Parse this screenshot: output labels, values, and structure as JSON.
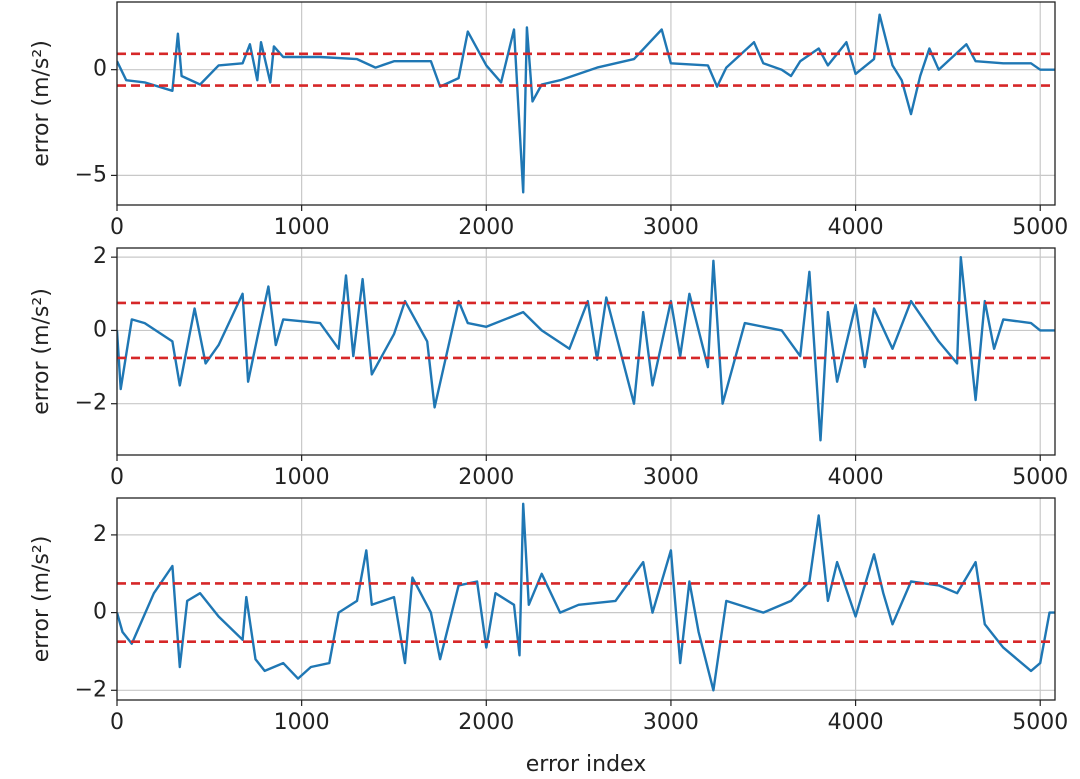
{
  "chart_data": [
    {
      "type": "line",
      "ylabel": "error (m/s²)",
      "grid": true,
      "xlim": [
        0,
        5080
      ],
      "ylim": [
        -6.4,
        3.2
      ],
      "xticks": [
        0,
        1000,
        2000,
        3000,
        4000,
        5000
      ],
      "yticks": [
        {
          "value": -5,
          "label": "−5"
        },
        0
      ],
      "hlines": [
        0.75,
        -0.75
      ],
      "hline_color": "#d62728",
      "x": [
        0,
        50,
        150,
        300,
        330,
        350,
        450,
        550,
        680,
        720,
        760,
        780,
        830,
        850,
        900,
        1100,
        1300,
        1400,
        1500,
        1700,
        1750,
        1850,
        1900,
        2000,
        2080,
        2150,
        2200,
        2220,
        2250,
        2300,
        2400,
        2600,
        2800,
        2950,
        3000,
        3200,
        3250,
        3300,
        3450,
        3500,
        3600,
        3650,
        3700,
        3800,
        3850,
        3950,
        4000,
        4100,
        4130,
        4200,
        4250,
        4300,
        4350,
        4400,
        4450,
        4550,
        4600,
        4650,
        4800,
        4950,
        5000,
        5080
      ],
      "series": [
        {
          "color": "#1f77b4",
          "values": [
            0.4,
            -0.5,
            -0.6,
            -1.0,
            1.7,
            -0.3,
            -0.7,
            0.2,
            0.3,
            1.2,
            -0.5,
            1.3,
            -0.6,
            1.1,
            0.6,
            0.6,
            0.5,
            0.1,
            0.4,
            0.4,
            -0.8,
            -0.4,
            1.8,
            0.2,
            -0.6,
            1.9,
            -5.8,
            2.0,
            -1.5,
            -0.7,
            -0.5,
            0.1,
            0.5,
            1.9,
            0.3,
            0.2,
            -0.8,
            0.1,
            1.3,
            0.3,
            0.0,
            -0.3,
            0.4,
            1.0,
            0.2,
            1.3,
            -0.2,
            0.5,
            2.6,
            0.2,
            -0.5,
            -2.1,
            -0.3,
            1.0,
            0.0,
            0.8,
            1.2,
            0.4,
            0.3,
            0.3,
            0.0,
            0.0
          ]
        }
      ]
    },
    {
      "type": "line",
      "ylabel": "error (m/s²)",
      "grid": true,
      "xlim": [
        0,
        5080
      ],
      "ylim": [
        -3.4,
        2.25
      ],
      "xticks": [
        0,
        1000,
        2000,
        3000,
        4000,
        5000
      ],
      "yticks": [
        {
          "value": -2,
          "label": "−2"
        },
        0,
        2
      ],
      "hlines": [
        0.75,
        -0.75
      ],
      "hline_color": "#d62728",
      "x": [
        0,
        20,
        80,
        150,
        300,
        340,
        420,
        480,
        550,
        680,
        710,
        760,
        820,
        860,
        900,
        1100,
        1200,
        1240,
        1280,
        1330,
        1380,
        1500,
        1560,
        1680,
        1720,
        1850,
        1900,
        2000,
        2200,
        2300,
        2450,
        2550,
        2600,
        2650,
        2800,
        2850,
        2900,
        3000,
        3050,
        3100,
        3200,
        3230,
        3280,
        3400,
        3600,
        3700,
        3750,
        3810,
        3850,
        3900,
        4000,
        4050,
        4100,
        4200,
        4300,
        4450,
        4550,
        4570,
        4650,
        4700,
        4750,
        4800,
        4950,
        5000,
        5080
      ],
      "series": [
        {
          "color": "#1f77b4",
          "values": [
            0.0,
            -1.6,
            0.3,
            0.2,
            -0.3,
            -1.5,
            0.6,
            -0.9,
            -0.4,
            1.0,
            -1.4,
            -0.2,
            1.2,
            -0.4,
            0.3,
            0.2,
            -0.5,
            1.5,
            -0.7,
            1.4,
            -1.2,
            -0.1,
            0.8,
            -0.3,
            -2.1,
            0.8,
            0.2,
            0.1,
            0.5,
            0.0,
            -0.5,
            0.8,
            -0.8,
            0.9,
            -2.0,
            0.5,
            -1.5,
            0.8,
            -0.7,
            1.0,
            -1.0,
            1.9,
            -2.0,
            0.2,
            0.0,
            -0.7,
            1.6,
            -3.0,
            0.5,
            -1.4,
            0.7,
            -1.0,
            0.6,
            -0.5,
            0.8,
            -0.3,
            -0.9,
            2.0,
            -1.9,
            0.8,
            -0.5,
            0.3,
            0.2,
            0.0,
            0.0
          ]
        }
      ]
    },
    {
      "type": "line",
      "ylabel": "error (m/s²)",
      "xlabel": "error index",
      "grid": true,
      "xlim": [
        0,
        5080
      ],
      "ylim": [
        -2.25,
        2.95
      ],
      "xticks": [
        0,
        1000,
        2000,
        3000,
        4000,
        5000
      ],
      "yticks": [
        {
          "value": -2,
          "label": "−2"
        },
        0,
        2
      ],
      "hlines": [
        0.75,
        -0.75
      ],
      "hline_color": "#d62728",
      "x": [
        0,
        30,
        80,
        200,
        300,
        340,
        380,
        450,
        550,
        680,
        700,
        750,
        800,
        900,
        980,
        1050,
        1150,
        1200,
        1300,
        1350,
        1380,
        1500,
        1560,
        1600,
        1700,
        1750,
        1850,
        1950,
        2000,
        2050,
        2150,
        2180,
        2200,
        2230,
        2300,
        2400,
        2500,
        2700,
        2850,
        2900,
        3000,
        3050,
        3100,
        3150,
        3230,
        3300,
        3500,
        3650,
        3750,
        3800,
        3850,
        3900,
        4000,
        4100,
        4150,
        4200,
        4300,
        4450,
        4550,
        4650,
        4700,
        4800,
        4950,
        5000,
        5050,
        5080
      ],
      "series": [
        {
          "color": "#1f77b4",
          "values": [
            0.0,
            -0.5,
            -0.8,
            0.5,
            1.2,
            -1.4,
            0.3,
            0.5,
            -0.1,
            -0.7,
            0.4,
            -1.2,
            -1.5,
            -1.3,
            -1.7,
            -1.4,
            -1.3,
            0.0,
            0.3,
            1.6,
            0.2,
            0.4,
            -1.3,
            0.9,
            0.0,
            -1.2,
            0.7,
            0.8,
            -0.9,
            0.5,
            0.2,
            -1.1,
            2.8,
            0.2,
            1.0,
            0.0,
            0.2,
            0.3,
            1.3,
            0.0,
            1.6,
            -1.3,
            0.8,
            -0.5,
            -2.0,
            0.3,
            0.0,
            0.3,
            0.8,
            2.5,
            0.3,
            1.3,
            -0.1,
            1.5,
            0.5,
            -0.3,
            0.8,
            0.7,
            0.5,
            1.3,
            -0.3,
            -0.9,
            -1.5,
            -1.3,
            0.0,
            0.0
          ]
        }
      ]
    }
  ]
}
